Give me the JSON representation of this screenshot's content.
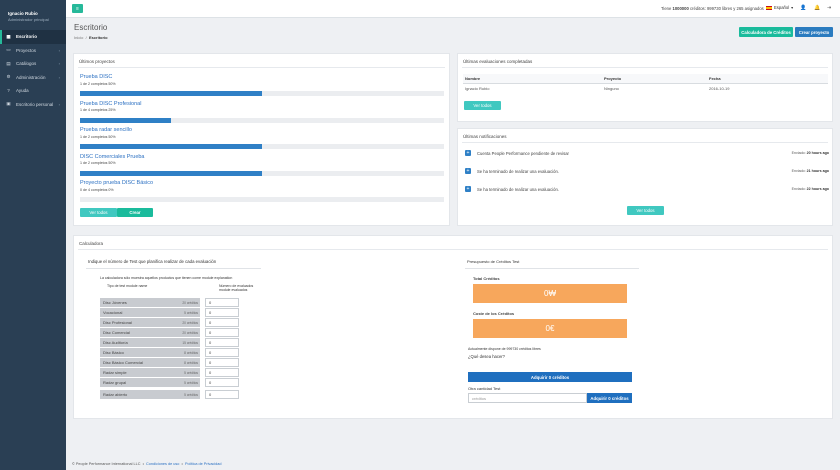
{
  "user": {
    "name": "Ignacio Rubio",
    "role": "Administrador principal"
  },
  "sidebar": {
    "items": [
      {
        "label": "Escritorio",
        "icon": "grid-icon",
        "active": true
      },
      {
        "label": "Proyectos",
        "icon": "folder-icon",
        "chev": "›"
      },
      {
        "label": "Catálogos",
        "icon": "book-icon",
        "chev": "›"
      },
      {
        "label": "Administración",
        "icon": "gear-icon",
        "chev": "›"
      },
      {
        "label": "Ayuda",
        "icon": "help-icon"
      },
      {
        "label": "Escritorio personal",
        "icon": "desktop-icon",
        "chev": "›"
      }
    ]
  },
  "topbar": {
    "menu_icon": "≡",
    "credits_prefix": "Tiene ",
    "credits_bold": "1000000",
    "credits_suffix": " créditos: 999730 libres y 265 asignados",
    "lang": "Español",
    "lang_caret": "▾",
    "icon_user": "👤",
    "icon_bell": "🔔",
    "icon_logout": "⇥"
  },
  "header": {
    "title": "Escritorio",
    "crumb_home": "Inicio",
    "crumb_sep": "/",
    "crumb_current": "Escritorio",
    "btn_calculadora": "Calculadora de Créditos",
    "btn_crear_proyecto": "Crear proyecto"
  },
  "projects": {
    "title": "Últimos proyectos",
    "items": [
      {
        "name": "Prueba DISC",
        "meta": "1 de 2 completos 50%",
        "progress": 0.5
      },
      {
        "name": "Prueba DISC Profesional",
        "meta": "1 de 4 completos 25%",
        "progress": 0.25
      },
      {
        "name": "Prueba radar sencillo",
        "meta": "1 de 2 completos 50%",
        "progress": 0.5
      },
      {
        "name": "DISC Comerciales Prueba",
        "meta": "1 de 2 completos 50%",
        "progress": 0.5
      },
      {
        "name": "Proyecto prueba DISC Básico",
        "meta": "0 de 4 completos 0%",
        "progress": 0
      }
    ],
    "btn_ver_todos": "Ver todos",
    "btn_crear": "Crear"
  },
  "evaluations": {
    "title": "Últimas evaluaciones completadas",
    "headers": [
      "Nombre",
      "Proyecto",
      "Fecha"
    ],
    "rows": [
      [
        "Ignacio Rubio",
        "Ninguno",
        "2016-10-19"
      ]
    ],
    "btn_ver_todos": "Ver todos"
  },
  "notifications": {
    "title": "Últimas notificaciones",
    "items": [
      {
        "text": "Cuenta People Performance pendiente de revisar",
        "sent": "Enviado:",
        "ago": "20 hours ago"
      },
      {
        "text": "Se ha terminado de realizar una evaluación.",
        "sent": "Enviado:",
        "ago": "21 hours ago"
      },
      {
        "text": "Se ha terminado de realizar una evaluación.",
        "sent": "Enviado:",
        "ago": "22 hours ago"
      }
    ],
    "btn_ver_todos": "Ver todos"
  },
  "calculator": {
    "title": "Calculadora",
    "left_subtitle": "Indique el número de Test que planifica realizar de cada evaluación",
    "note": "La calculadora sólo muestra aquellos productos que tienen come module explanation",
    "col_type": "Tipo de test module name",
    "col_number": "Número de evaluados module evaluados",
    "rows": [
      {
        "name": "Disc Jóvenes",
        "credits": "20 créditos",
        "value": "0"
      },
      {
        "name": "Vocacional",
        "credits": "5 créditos",
        "value": "0"
      },
      {
        "name": "Disc Profesional",
        "credits": "20 créditos",
        "value": "0"
      },
      {
        "name": "Disc Comercial",
        "credits": "20 créditos",
        "value": "0"
      },
      {
        "name": "Disc Auditoría",
        "credits": "15 créditos",
        "value": "0"
      },
      {
        "name": "Disc Básico",
        "credits": "8 créditos",
        "value": "0"
      },
      {
        "name": "Disc Básico Comercial",
        "credits": "8 créditos",
        "value": "0"
      },
      {
        "name": "Radar simple",
        "credits": "5 créditos",
        "value": "0"
      },
      {
        "name": "Radar grupal",
        "credits": "5 créditos",
        "value": "0"
      },
      {
        "name": "Radar abierto",
        "credits": "5 créditos",
        "value": "0"
      }
    ],
    "right_subtitle": "Presupuesto de Créditos Test",
    "total_label": "Total Créditos",
    "total_value": "0₩",
    "cost_label": "Coste de los Créditos",
    "cost_value": "0€",
    "available": "Actualmente dispone de 999730 créditos libres",
    "question": "¿Qué desea hacer?",
    "btn_adquirir": "Adquirir 0 créditos",
    "other_label": "Otra cantidad Test",
    "other_placeholder": "créditos",
    "btn_adquirir_small": "Adquirir 0 créditos"
  },
  "footer": {
    "copyright": "© People Performance International LLC",
    "sep1": "•",
    "terms": "Condiciones de uso",
    "sep2": "•",
    "privacy": "Política de Privacidad"
  },
  "colors": {
    "sidebar": "#2a3f54",
    "accent": "#26b99a",
    "teal": "#40c8c0",
    "blue": "#2f80c6",
    "orange": "#f7a75c"
  }
}
